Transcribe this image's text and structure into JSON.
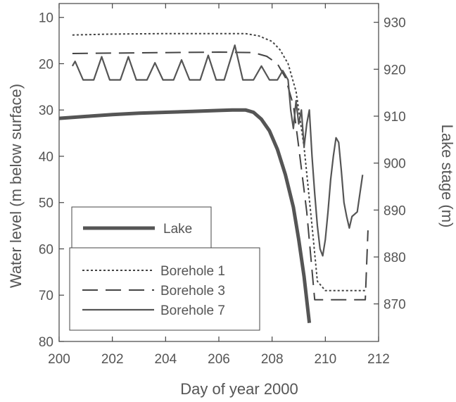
{
  "chart_data": {
    "type": "line",
    "title": "",
    "xlabel": "Day of year 2000",
    "ylabel_left": "Water level (m below surface)",
    "ylabel_right": "Lake stage (m)",
    "xlim": [
      200,
      212
    ],
    "ylim_left": [
      80,
      7
    ],
    "ylim_right": [
      862,
      934
    ],
    "left_axis_inverted": true,
    "x_ticks": [
      200,
      202,
      204,
      206,
      208,
      210,
      212
    ],
    "y_left_ticks": [
      10,
      20,
      30,
      40,
      50,
      60,
      70,
      80
    ],
    "y_right_ticks": [
      870,
      880,
      890,
      900,
      910,
      920,
      930
    ],
    "grid": false,
    "series": [
      {
        "name": "Lake",
        "axis": "left",
        "style": "thick-solid",
        "color": "#555555",
        "x": [
          200.0,
          201.0,
          202.0,
          203.0,
          204.0,
          205.0,
          206.0,
          206.5,
          207.0,
          207.3,
          207.6,
          207.9,
          208.2,
          208.5,
          208.8,
          209.0,
          209.2,
          209.4
        ],
        "y": [
          31.8,
          31.4,
          31.0,
          30.7,
          30.5,
          30.3,
          30.1,
          30.0,
          30.0,
          30.5,
          32.0,
          34.5,
          38.5,
          44.0,
          51.0,
          58.0,
          66.0,
          76.0
        ]
      },
      {
        "name": "Borehole 1",
        "axis": "left",
        "style": "dotted",
        "color": "#444444",
        "x": [
          200.5,
          202.0,
          204.0,
          206.0,
          207.0,
          207.5,
          208.0,
          208.3,
          208.6,
          208.9,
          209.2,
          209.5,
          209.7,
          210.0,
          210.2,
          210.5,
          211.0,
          211.5
        ],
        "y": [
          13.8,
          13.6,
          13.5,
          13.5,
          13.5,
          14.0,
          15.2,
          17.0,
          20.0,
          26.0,
          38.0,
          55.0,
          67.0,
          69.0,
          69.0,
          69.0,
          69.0,
          69.0
        ]
      },
      {
        "name": "Borehole 3",
        "axis": "left",
        "style": "long-dash",
        "color": "#444444",
        "x": [
          200.5,
          202.0,
          204.0,
          206.0,
          207.3,
          207.8,
          208.2,
          208.5,
          208.8,
          209.0,
          209.3,
          209.6,
          210.0,
          210.5,
          211.0,
          211.2,
          211.5,
          211.6
        ],
        "y": [
          17.8,
          17.7,
          17.6,
          17.5,
          17.6,
          18.4,
          20.0,
          23.0,
          29.0,
          38.0,
          52.0,
          71.0,
          71.0,
          71.0,
          71.0,
          71.0,
          71.0,
          56.0
        ]
      },
      {
        "name": "Borehole 7",
        "axis": "left",
        "style": "solid",
        "color": "#555555",
        "x": [
          200.5,
          200.6,
          200.9,
          201.3,
          201.6,
          201.9,
          202.3,
          202.6,
          202.9,
          203.3,
          203.6,
          203.9,
          204.3,
          204.6,
          204.9,
          205.3,
          205.6,
          205.9,
          206.2,
          206.6,
          206.9,
          207.3,
          207.6,
          207.9,
          208.2,
          208.4,
          208.6,
          208.7,
          208.8,
          208.9,
          209.0,
          209.1,
          209.2,
          209.3,
          209.4,
          209.5,
          209.6,
          209.7,
          209.8,
          209.9,
          210.0,
          210.1,
          210.2,
          210.3,
          210.4,
          210.5,
          210.6,
          210.7,
          210.8,
          210.9,
          211.0,
          211.2,
          211.4
        ],
        "y": [
          20.5,
          19.5,
          23.5,
          23.5,
          18.5,
          23.5,
          23.5,
          18.5,
          23.5,
          23.5,
          19.8,
          23.5,
          23.5,
          19.2,
          23.5,
          23.5,
          18.2,
          23.5,
          23.5,
          16.0,
          23.5,
          23.5,
          20.5,
          23.5,
          23.5,
          21.5,
          23.5,
          30.0,
          34.0,
          28.0,
          33.0,
          30.0,
          38.0,
          33.0,
          30.0,
          40.0,
          48.0,
          55.0,
          60.0,
          61.5,
          58.0,
          52.0,
          45.0,
          40.0,
          36.0,
          37.0,
          43.0,
          50.0,
          53.0,
          55.5,
          53.0,
          52.0,
          44.0
        ]
      }
    ],
    "legends": [
      {
        "entries": [
          "Lake"
        ]
      },
      {
        "entries": [
          "Borehole 1",
          "Borehole 3",
          "Borehole 7"
        ]
      }
    ]
  }
}
